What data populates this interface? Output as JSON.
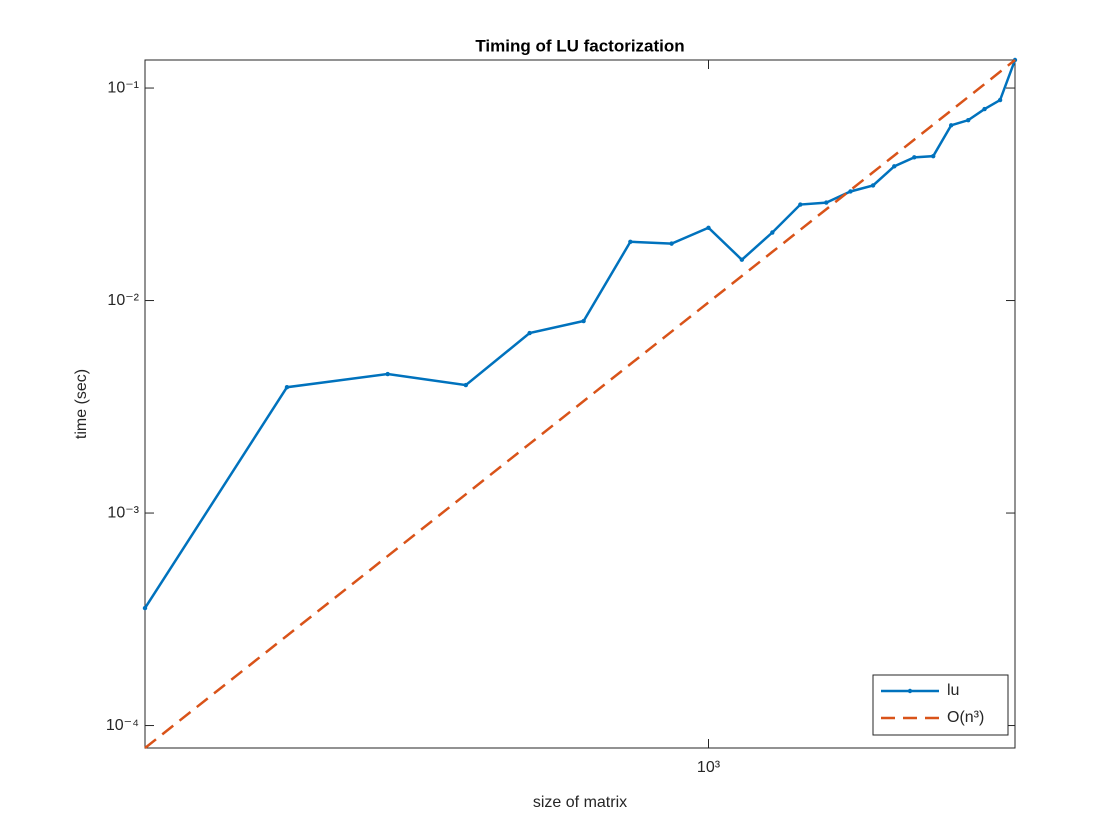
{
  "chart_data": {
    "type": "line",
    "title": "Timing of LU factorization",
    "x_label": "size of matrix",
    "y_label": "time (sec)",
    "x": [
      200,
      300,
      400,
      500,
      600,
      700,
      800,
      900,
      1000,
      1100,
      1200,
      1300,
      1400,
      1500,
      1600,
      1700,
      1800,
      1900,
      2000,
      2100,
      2200,
      2300,
      2400
    ],
    "series": [
      {
        "name": "lu",
        "color": "#0072bd",
        "dashed": false,
        "markers": true,
        "values": [
          0.000357,
          0.00391,
          0.00451,
          0.004,
          0.00703,
          0.00801,
          0.0189,
          0.01853,
          0.022,
          0.01556,
          0.0209,
          0.0283,
          0.0289,
          0.0326,
          0.0348,
          0.0428,
          0.0472,
          0.0478,
          0.0668,
          0.0706,
          0.0796,
          0.0878,
          0.1355
        ]
      },
      {
        "name": "O(n³)",
        "color": "#d95319",
        "dashed": true,
        "markers": false,
        "values": [
          7.84e-05,
          0.0002647,
          0.0006273,
          0.0012252,
          0.002117,
          0.003362,
          0.005019,
          0.007146,
          0.009802,
          0.013046,
          0.016938,
          0.021535,
          0.026897,
          0.033081,
          0.040148,
          0.048157,
          0.057164,
          0.06723,
          0.078414,
          0.090774,
          0.104357,
          0.119259,
          0.1355
        ]
      }
    ],
    "x_scale": "log",
    "y_scale": "log",
    "xlim": [
      200,
      2400
    ],
    "ylim": [
      7.84e-05,
      0.1355
    ],
    "xticks": [
      {
        "value": 1000,
        "label": "10³"
      }
    ],
    "yticks": [
      {
        "value": 0.0001,
        "label": "10⁻⁴"
      },
      {
        "value": 0.001,
        "label": "10⁻³"
      },
      {
        "value": 0.01,
        "label": "10⁻²"
      },
      {
        "value": 0.1,
        "label": "10⁻¹"
      }
    ],
    "grid": false,
    "legend": "lower right"
  }
}
